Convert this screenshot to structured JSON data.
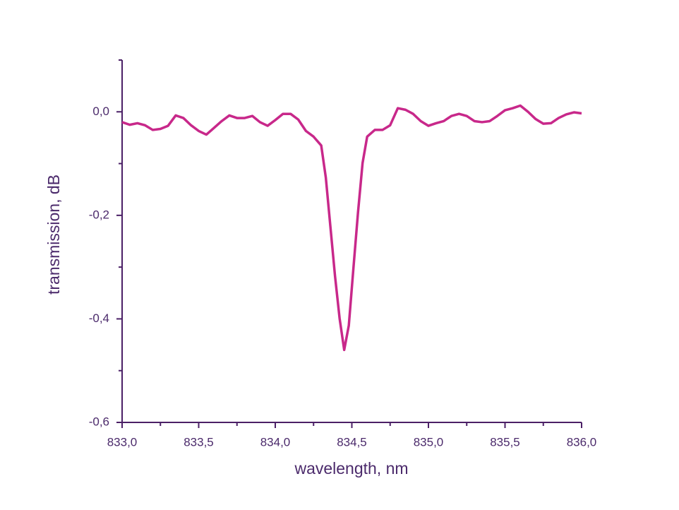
{
  "chart_data": {
    "type": "line",
    "xlabel": "wavelength, nm",
    "ylabel": "transmission, dB",
    "x": [
      833.0,
      833.05,
      833.1,
      833.15,
      833.2,
      833.25,
      833.3,
      833.35,
      833.4,
      833.45,
      833.5,
      833.55,
      833.6,
      833.65,
      833.7,
      833.75,
      833.8,
      833.85,
      833.9,
      833.95,
      834.0,
      834.05,
      834.1,
      834.15,
      834.2,
      834.25,
      834.3,
      834.33,
      834.36,
      834.39,
      834.42,
      834.45,
      834.48,
      834.51,
      834.54,
      834.57,
      834.6,
      834.65,
      834.7,
      834.75,
      834.8,
      834.85,
      834.9,
      834.95,
      835.0,
      835.05,
      835.1,
      835.15,
      835.2,
      835.25,
      835.3,
      835.35,
      835.4,
      835.45,
      835.5,
      835.55,
      835.6,
      835.65,
      835.7,
      835.75,
      835.8,
      835.85,
      835.9,
      835.95,
      836.0
    ],
    "series": [
      {
        "color": "#c8288a",
        "values": [
          -0.02,
          -0.025,
          -0.022,
          -0.026,
          -0.035,
          -0.033,
          -0.027,
          -0.007,
          -0.012,
          -0.026,
          -0.037,
          -0.044,
          -0.031,
          -0.018,
          -0.007,
          -0.012,
          -0.012,
          -0.008,
          -0.02,
          -0.027,
          -0.016,
          -0.004,
          -0.004,
          -0.015,
          -0.037,
          -0.048,
          -0.065,
          -0.127,
          -0.222,
          -0.317,
          -0.399,
          -0.46,
          -0.413,
          -0.303,
          -0.195,
          -0.099,
          -0.048,
          -0.035,
          -0.035,
          -0.026,
          0.007,
          0.004,
          -0.004,
          -0.018,
          -0.027,
          -0.022,
          -0.018,
          -0.008,
          -0.004,
          -0.008,
          -0.018,
          -0.02,
          -0.018,
          -0.008,
          0.003,
          0.007,
          0.012,
          0,
          -0.014,
          -0.023,
          -0.022,
          -0.012,
          -0.005,
          -0.001,
          -0.003
        ]
      }
    ],
    "xlim": [
      833.0,
      836.0
    ],
    "xticks": [
      {
        "value": 833.0,
        "label": "833,0"
      },
      {
        "value": 833.5,
        "label": "833,5"
      },
      {
        "value": 834.0,
        "label": "834,0"
      },
      {
        "value": 834.5,
        "label": "834,5"
      },
      {
        "value": 835.0,
        "label": "835,0"
      },
      {
        "value": 835.5,
        "label": "835,5"
      },
      {
        "value": 836.0,
        "label": "836,0"
      }
    ],
    "xminorticks": [
      833.25,
      833.75,
      834.25,
      834.75,
      835.25,
      835.75
    ],
    "ylim": [
      -0.6,
      0.1
    ],
    "yticks": [
      {
        "value": -0.6,
        "label": "-0,6"
      },
      {
        "value": -0.4,
        "label": "-0,4"
      },
      {
        "value": -0.2,
        "label": "-0,2"
      },
      {
        "value": 0,
        "label": "0,0"
      }
    ],
    "yminorticks": [
      -0.5,
      -0.3,
      -0.1,
      0.1
    ],
    "axis_color": "#4b2066"
  }
}
